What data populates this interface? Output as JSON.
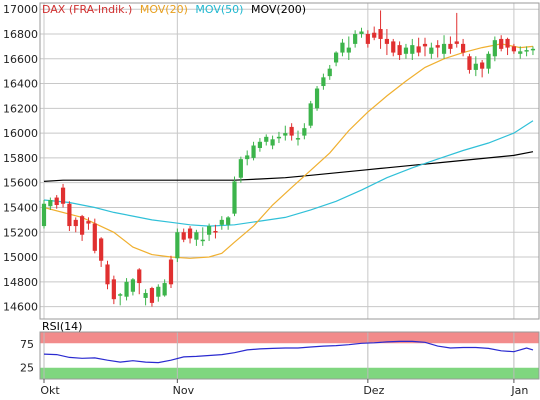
{
  "legend": {
    "instrument": "DAX (FRA-Indik.)",
    "ma20_label": "MOV(20)",
    "ma50_label": "MOV(50)",
    "ma200_label": "MOV(200)",
    "rsi_label": "RSI(14)"
  },
  "colors": {
    "up": "#3cb44b",
    "down": "#e03030",
    "ma20": "#f0b030",
    "ma50": "#30c0d8",
    "ma200": "#000000",
    "rsi_line": "#2a2ad0",
    "rsi_overbought": "#f28b8b",
    "rsi_oversold": "#7fd67f",
    "grid": "#c8c8c8"
  },
  "chart_data": [
    {
      "type": "candlestick",
      "ylim": [
        14500,
        17050
      ],
      "yticks": [
        14600,
        14800,
        15000,
        15200,
        15400,
        15600,
        15800,
        16000,
        16200,
        16400,
        16600,
        16800,
        17000
      ],
      "xticks": [
        {
          "label": "Okt",
          "index": 0
        },
        {
          "label": "Nov",
          "index": 21
        },
        {
          "label": "Dez",
          "index": 51
        },
        {
          "label": "Jan",
          "index": 74
        }
      ],
      "grid": true,
      "ohlc": [
        [
          15250,
          15460,
          15230,
          15430
        ],
        [
          15410,
          15480,
          15380,
          15460
        ],
        [
          15480,
          15500,
          15390,
          15420
        ],
        [
          15560,
          15590,
          15400,
          15430
        ],
        [
          15430,
          15450,
          15210,
          15250
        ],
        [
          15300,
          15320,
          15200,
          15250
        ],
        [
          15330,
          15340,
          15130,
          15180
        ],
        [
          15290,
          15320,
          15220,
          15270
        ],
        [
          15270,
          15310,
          15030,
          15050
        ],
        [
          15150,
          15160,
          14920,
          14970
        ],
        [
          14940,
          14970,
          14740,
          14780
        ],
        [
          14820,
          14850,
          14620,
          14660
        ],
        [
          14690,
          14710,
          14610,
          14700
        ],
        [
          14680,
          14830,
          14650,
          14800
        ],
        [
          14720,
          14830,
          14690,
          14820
        ],
        [
          14900,
          14910,
          14700,
          14790
        ],
        [
          14670,
          14740,
          14610,
          14710
        ],
        [
          14750,
          14760,
          14600,
          14630
        ],
        [
          14680,
          14780,
          14640,
          14760
        ],
        [
          14690,
          14820,
          14680,
          14790
        ],
        [
          14980,
          15010,
          14750,
          14780
        ],
        [
          14990,
          15230,
          14960,
          15200
        ],
        [
          15200,
          15230,
          15120,
          15140
        ],
        [
          15230,
          15250,
          15110,
          15150
        ],
        [
          15140,
          15220,
          15090,
          15200
        ],
        [
          15140,
          15240,
          15090,
          15140
        ],
        [
          15180,
          15270,
          15130,
          15250
        ],
        [
          15210,
          15260,
          15150,
          15200
        ],
        [
          15260,
          15330,
          15220,
          15300
        ],
        [
          15260,
          15330,
          15220,
          15320
        ],
        [
          15350,
          15650,
          15330,
          15610
        ],
        [
          15640,
          15810,
          15600,
          15790
        ],
        [
          15790,
          15860,
          15740,
          15820
        ],
        [
          15800,
          15930,
          15780,
          15900
        ],
        [
          15880,
          15960,
          15850,
          15930
        ],
        [
          15930,
          15990,
          15900,
          15970
        ],
        [
          15900,
          15980,
          15870,
          15950
        ],
        [
          15960,
          16010,
          15920,
          15970
        ],
        [
          15980,
          16060,
          15940,
          16000
        ],
        [
          16050,
          16080,
          15940,
          15980
        ],
        [
          15960,
          16020,
          15900,
          15960
        ],
        [
          15980,
          16080,
          15950,
          16040
        ],
        [
          16060,
          16260,
          16040,
          16240
        ],
        [
          16200,
          16380,
          16180,
          16360
        ],
        [
          16380,
          16480,
          16350,
          16450
        ],
        [
          16460,
          16550,
          16430,
          16520
        ],
        [
          16570,
          16660,
          16540,
          16650
        ],
        [
          16650,
          16760,
          16620,
          16730
        ],
        [
          16650,
          16780,
          16590,
          16690
        ],
        [
          16720,
          16830,
          16690,
          16800
        ],
        [
          16800,
          16850,
          16770,
          16820
        ],
        [
          16800,
          16830,
          16690,
          16720
        ],
        [
          16810,
          16860,
          16750,
          16770
        ],
        [
          16840,
          16990,
          16680,
          16760
        ],
        [
          16760,
          16840,
          16630,
          16720
        ],
        [
          16740,
          16760,
          16620,
          16650
        ],
        [
          16710,
          16740,
          16590,
          16630
        ],
        [
          16640,
          16720,
          16600,
          16690
        ],
        [
          16640,
          16760,
          16590,
          16710
        ],
        [
          16700,
          16770,
          16620,
          16650
        ],
        [
          16720,
          16770,
          16620,
          16700
        ],
        [
          16640,
          16730,
          16600,
          16690
        ],
        [
          16710,
          16750,
          16610,
          16690
        ],
        [
          16640,
          16790,
          16600,
          16720
        ],
        [
          16720,
          16780,
          16640,
          16680
        ],
        [
          16740,
          16970,
          16690,
          16720
        ],
        [
          16720,
          16760,
          16620,
          16650
        ],
        [
          16620,
          16640,
          16480,
          16510
        ],
        [
          16510,
          16620,
          16460,
          16560
        ],
        [
          16570,
          16590,
          16450,
          16520
        ],
        [
          16520,
          16660,
          16480,
          16640
        ],
        [
          16620,
          16780,
          16580,
          16750
        ],
        [
          16760,
          16790,
          16660,
          16680
        ],
        [
          16760,
          16770,
          16630,
          16690
        ],
        [
          16700,
          16720,
          16640,
          16660
        ],
        [
          16640,
          16700,
          16600,
          16660
        ],
        [
          16660,
          16700,
          16620,
          16670
        ],
        [
          16670,
          16700,
          16630,
          16680
        ]
      ],
      "ma20": [
        [
          0,
          15400
        ],
        [
          6,
          15320
        ],
        [
          11,
          15200
        ],
        [
          14,
          15080
        ],
        [
          17,
          15020
        ],
        [
          20,
          15000
        ],
        [
          23,
          14990
        ],
        [
          26,
          15000
        ],
        [
          28,
          15030
        ],
        [
          30,
          15120
        ],
        [
          33,
          15250
        ],
        [
          36,
          15420
        ],
        [
          39,
          15560
        ],
        [
          42,
          15700
        ],
        [
          45,
          15840
        ],
        [
          48,
          16020
        ],
        [
          51,
          16170
        ],
        [
          54,
          16300
        ],
        [
          57,
          16420
        ],
        [
          60,
          16530
        ],
        [
          63,
          16600
        ],
        [
          66,
          16650
        ],
        [
          69,
          16690
        ],
        [
          72,
          16720
        ],
        [
          75,
          16690
        ],
        [
          77,
          16700
        ]
      ],
      "ma50": [
        [
          0,
          15460
        ],
        [
          4,
          15440
        ],
        [
          8,
          15400
        ],
        [
          11,
          15360
        ],
        [
          14,
          15330
        ],
        [
          17,
          15300
        ],
        [
          20,
          15280
        ],
        [
          23,
          15260
        ],
        [
          26,
          15250
        ],
        [
          30,
          15260
        ],
        [
          34,
          15290
        ],
        [
          38,
          15320
        ],
        [
          42,
          15380
        ],
        [
          46,
          15450
        ],
        [
          50,
          15540
        ],
        [
          54,
          15640
        ],
        [
          58,
          15720
        ],
        [
          62,
          15790
        ],
        [
          66,
          15860
        ],
        [
          70,
          15920
        ],
        [
          74,
          16000
        ],
        [
          77,
          16100
        ]
      ],
      "ma200": [
        [
          0,
          15610
        ],
        [
          3,
          15620
        ],
        [
          6,
          15620
        ],
        [
          10,
          15620
        ],
        [
          14,
          15620
        ],
        [
          18,
          15620
        ],
        [
          22,
          15620
        ],
        [
          26,
          15620
        ],
        [
          30,
          15620
        ],
        [
          34,
          15630
        ],
        [
          38,
          15640
        ],
        [
          42,
          15660
        ],
        [
          46,
          15680
        ],
        [
          50,
          15700
        ],
        [
          54,
          15720
        ],
        [
          58,
          15740
        ],
        [
          62,
          15760
        ],
        [
          66,
          15780
        ],
        [
          70,
          15800
        ],
        [
          74,
          15820
        ],
        [
          77,
          15850
        ]
      ]
    },
    {
      "type": "line",
      "title": "RSI(14)",
      "ylim": [
        0,
        100
      ],
      "yticks": [
        25,
        75
      ],
      "overbought": 75,
      "oversold": 25,
      "grid": true,
      "rsi": [
        [
          0,
          53
        ],
        [
          2,
          52
        ],
        [
          4,
          46
        ],
        [
          6,
          44
        ],
        [
          8,
          45
        ],
        [
          10,
          40
        ],
        [
          12,
          36
        ],
        [
          14,
          39
        ],
        [
          16,
          36
        ],
        [
          18,
          35
        ],
        [
          20,
          40
        ],
        [
          22,
          47
        ],
        [
          24,
          48
        ],
        [
          26,
          50
        ],
        [
          28,
          52
        ],
        [
          30,
          56
        ],
        [
          32,
          62
        ],
        [
          34,
          64
        ],
        [
          36,
          65
        ],
        [
          38,
          66
        ],
        [
          40,
          66
        ],
        [
          42,
          68
        ],
        [
          44,
          70
        ],
        [
          46,
          71
        ],
        [
          48,
          73
        ],
        [
          50,
          76
        ],
        [
          52,
          77
        ],
        [
          54,
          79
        ],
        [
          56,
          80
        ],
        [
          58,
          80
        ],
        [
          60,
          78
        ],
        [
          62,
          70
        ],
        [
          64,
          66
        ],
        [
          66,
          67
        ],
        [
          68,
          67
        ],
        [
          70,
          65
        ],
        [
          72,
          60
        ],
        [
          74,
          58
        ],
        [
          76,
          66
        ],
        [
          77,
          62
        ]
      ]
    }
  ]
}
